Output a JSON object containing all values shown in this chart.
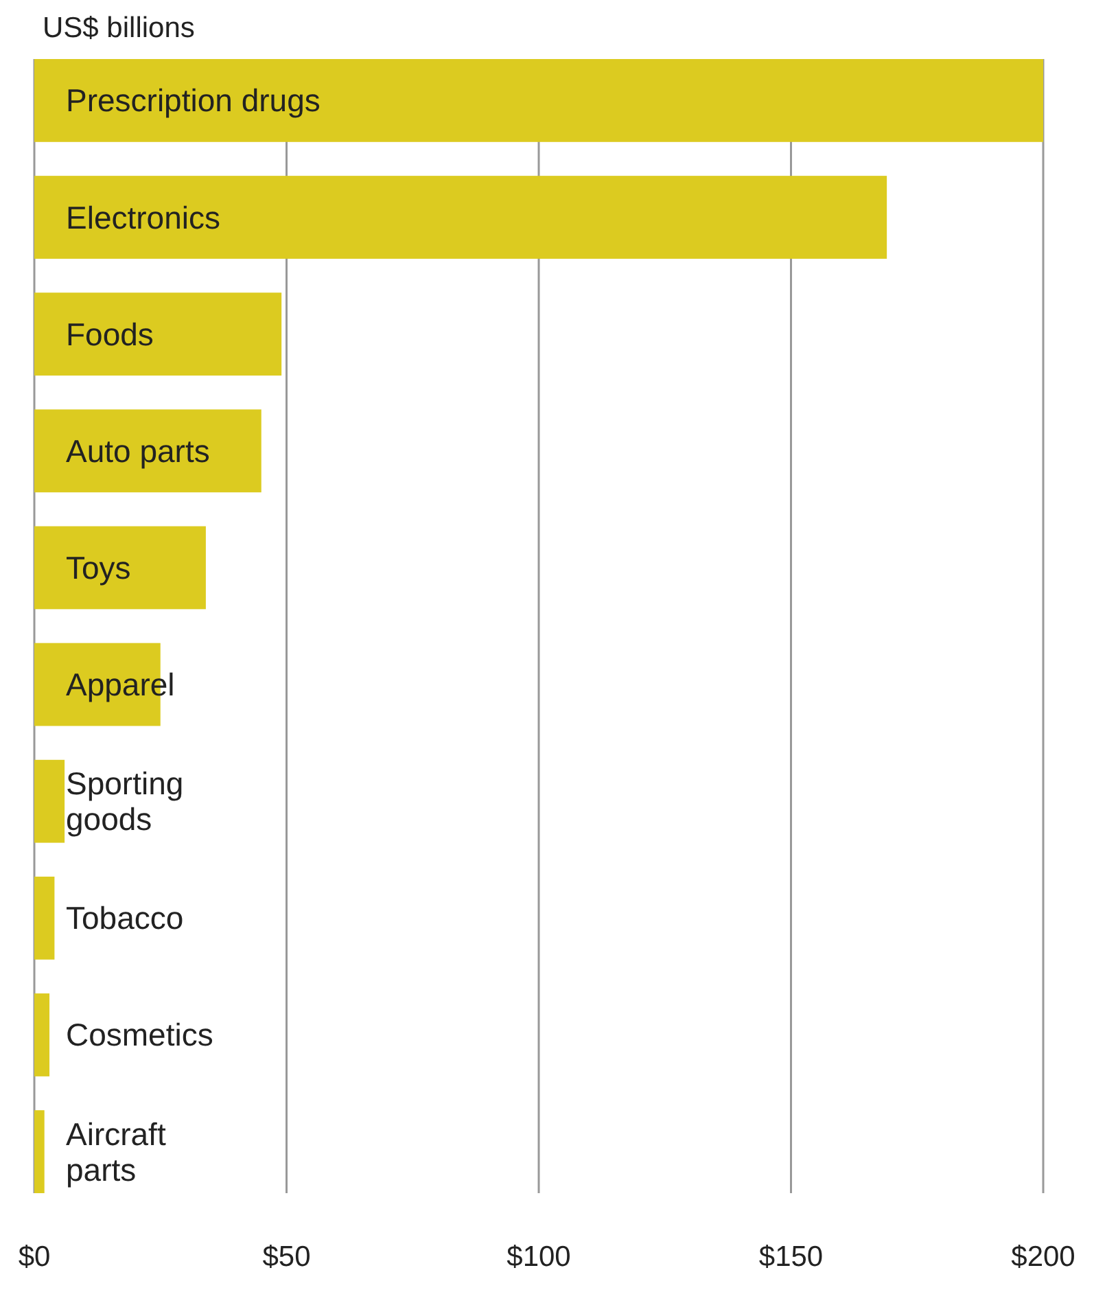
{
  "chart_data": {
    "type": "bar",
    "orientation": "horizontal",
    "xlabel": "US$ billions",
    "categories": [
      "Prescription drugs",
      "Electronics",
      "Foods",
      "Auto parts",
      "Toys",
      "Apparel",
      "Sporting\ngoods",
      "Tobacco",
      "Cosmetics",
      "Aircraft\nparts"
    ],
    "values": [
      200,
      169,
      49,
      45,
      34,
      25,
      6,
      4,
      3,
      2
    ],
    "color": "#dccb20",
    "xlim": [
      0,
      200
    ],
    "xticks": [
      {
        "value": 0,
        "label": "$0"
      },
      {
        "value": 50,
        "label": "$50"
      },
      {
        "value": 100,
        "label": "$100"
      },
      {
        "value": 150,
        "label": "$150"
      },
      {
        "value": 200,
        "label": "$200"
      }
    ],
    "grid": "x"
  }
}
